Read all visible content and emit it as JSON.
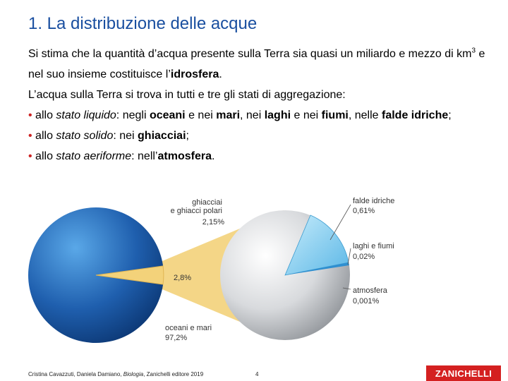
{
  "slide": {
    "title": "1. La distribuzione delle acque",
    "para1": {
      "part1": "Si stima che la quantità d’acqua presente sulla Terra sia quasi un miliardo e mezzo di km",
      "sup": "3",
      "part2": " e nel suo insieme costituisce l’",
      "bold": "idrosfera",
      "part3": "."
    },
    "para2": "L’acqua sulla Terra si trova in tutti e tre gli stati di aggregazione:",
    "bullet_char": "•",
    "bullets": [
      {
        "prefix": " allo ",
        "state": "stato liquido",
        "t1": ": negli ",
        "b1": "oceani",
        "t2": " e nei ",
        "b2": "mari",
        "t3": ", nei ",
        "b3": "laghi",
        "t4": " e nei ",
        "b4": "fiumi",
        "t5": ", nelle ",
        "b5": "falde idriche",
        "t6": ";"
      },
      {
        "prefix": " allo ",
        "state": "stato solido",
        "t1": ": nei ",
        "b1": "ghiacciai",
        "t2": ";"
      },
      {
        "prefix": " allo ",
        "state": "stato aeriforme",
        "t1": ": nell’",
        "b1": "atmosfera",
        "t2": "."
      }
    ]
  },
  "figure": {
    "labels": {
      "ocean_line1": "oceani e mari",
      "ocean_value": "97,2%",
      "fresh_value": "2,8%",
      "glacier_line1": "ghiacciai",
      "glacier_line2": "e ghiacci polari",
      "glacier_value": "2,15%",
      "ground_line1": "falde idriche",
      "ground_value": "0,61%",
      "lakes_line1": "laghi e fiumi",
      "lakes_value": "0,02%",
      "atmo_line1": "atmosfera",
      "atmo_value": "0,001%"
    },
    "colors": {
      "ocean": "#1f5fae",
      "fresh_slice": "#f3d27a",
      "big_circle": "#c9ccd0",
      "glacier_slice": "#8fd0ef",
      "line": "#555555"
    }
  },
  "footer": {
    "authors_pre": "Cristina Cavazzuti, Daniela Damiano, ",
    "book": "Biologia",
    "authors_post": ", Zanichelli editore 2019",
    "page": "4",
    "logo": "ZANICHELLI"
  }
}
